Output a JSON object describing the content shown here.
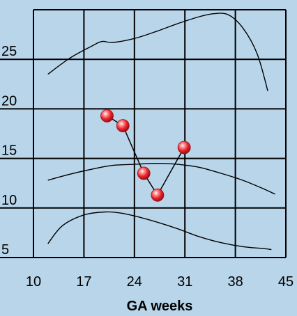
{
  "chart_data": {
    "type": "line",
    "title": "",
    "xlabel": "GA weeks",
    "ylabel": "",
    "xlim": [
      10,
      45
    ],
    "ylim": [
      5,
      30
    ],
    "x_ticks": [
      "10",
      "17",
      "24",
      "31",
      "38",
      "45"
    ],
    "y_ticks": [
      "5",
      "10",
      "15",
      "20",
      "25"
    ],
    "grid": true,
    "legend": "none",
    "colors": {
      "background": "#b9d5ea",
      "grid": "#000000",
      "curve": "#000000",
      "marker": "#e8222b"
    },
    "series": [
      {
        "role": "upper-reference",
        "x": [
          12,
          15,
          18,
          19.5,
          21,
          24,
          27,
          30,
          33,
          35,
          37,
          39,
          41,
          42.5
        ],
        "y": [
          23.5,
          25.1,
          26.3,
          26.8,
          26.7,
          27.1,
          27.8,
          28.6,
          29.3,
          29.6,
          29.5,
          28.2,
          25.6,
          21.8
        ]
      },
      {
        "role": "middle-reference",
        "x": [
          12,
          15,
          18,
          21,
          24,
          27,
          30,
          33,
          36,
          39,
          42,
          43.5
        ],
        "y": [
          12.8,
          13.4,
          13.9,
          14.3,
          14.4,
          14.5,
          14.4,
          14.1,
          13.5,
          12.8,
          11.9,
          11.4
        ]
      },
      {
        "role": "lower-reference",
        "x": [
          12,
          14,
          17,
          20,
          22,
          24,
          27,
          30,
          33,
          36,
          39,
          42,
          43
        ],
        "y": [
          6.4,
          8.2,
          9.3,
          9.6,
          9.5,
          9.2,
          8.6,
          7.9,
          7.1,
          6.5,
          6.1,
          5.9,
          5.8
        ]
      },
      {
        "role": "measurements",
        "markers": true,
        "x": [
          20.2,
          22.4,
          25.3,
          27.2,
          30.9
        ],
        "y": [
          19.3,
          18.3,
          13.5,
          11.3,
          16.1
        ]
      }
    ]
  }
}
